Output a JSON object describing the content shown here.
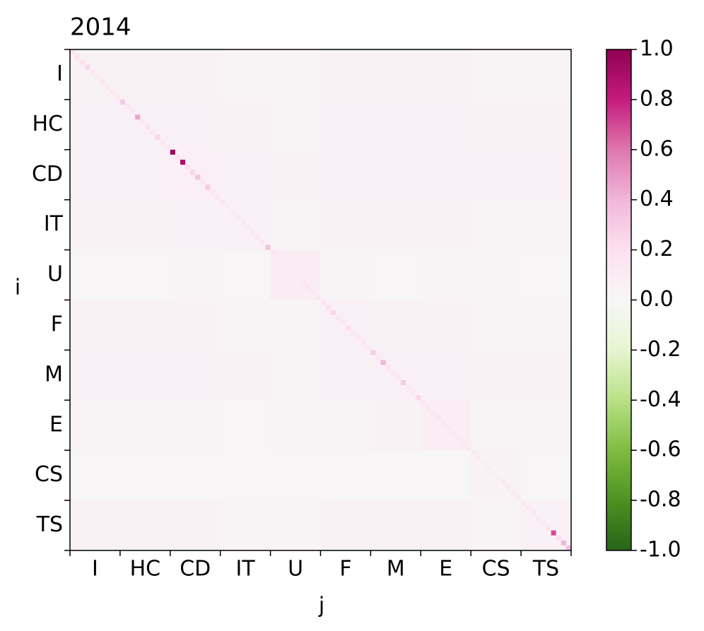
{
  "chart_data": {
    "type": "heatmap",
    "title": "2014",
    "xlabel": "j",
    "ylabel": "i",
    "categories": [
      "I",
      "HC",
      "CD",
      "IT",
      "U",
      "F",
      "M",
      "E",
      "CS",
      "TS"
    ],
    "z": [
      [
        0.04,
        0.04,
        0.04,
        0.03,
        0.03,
        0.04,
        0.04,
        0.04,
        0.03,
        0.03
      ],
      [
        0.05,
        0.06,
        0.05,
        0.04,
        0.03,
        0.05,
        0.05,
        0.05,
        0.04,
        0.04
      ],
      [
        0.06,
        0.06,
        0.07,
        0.05,
        0.04,
        0.06,
        0.06,
        0.06,
        0.05,
        0.05
      ],
      [
        0.04,
        0.04,
        0.05,
        0.05,
        0.03,
        0.04,
        0.04,
        0.04,
        0.03,
        0.03
      ],
      [
        0.02,
        0.02,
        0.03,
        0.02,
        0.1,
        0.03,
        0.02,
        0.03,
        0.03,
        0.02
      ],
      [
        0.04,
        0.04,
        0.04,
        0.03,
        0.03,
        0.06,
        0.04,
        0.04,
        0.03,
        0.03
      ],
      [
        0.05,
        0.05,
        0.05,
        0.04,
        0.03,
        0.05,
        0.06,
        0.05,
        0.04,
        0.04
      ],
      [
        0.03,
        0.03,
        0.03,
        0.02,
        0.03,
        0.03,
        0.04,
        0.09,
        0.03,
        0.03
      ],
      [
        0.02,
        0.02,
        0.02,
        0.02,
        0.02,
        0.02,
        0.02,
        0.02,
        0.04,
        0.02
      ],
      [
        0.04,
        0.04,
        0.04,
        0.03,
        0.03,
        0.04,
        0.04,
        0.04,
        0.03,
        0.05
      ]
    ],
    "diagonal": [
      0.18,
      0.2,
      0.2,
      0.25,
      0.15,
      0.15,
      0.15,
      0.15,
      0.15,
      0.15,
      0.3,
      0.15,
      0.15,
      0.45,
      0.15,
      0.2,
      0.15,
      0.25,
      0.15,
      0.15,
      0.95,
      0.15,
      0.9,
      0.2,
      0.25,
      0.35,
      0.15,
      0.3,
      0.15,
      0.15,
      0.15,
      0.1,
      0.12,
      0.12,
      0.12,
      0.12,
      0.15,
      0.15,
      0.15,
      0.35,
      0.15,
      0.12,
      0.12,
      0.12,
      0.12,
      0.12,
      0.15,
      0.15,
      0.15,
      0.15,
      0.15,
      0.2,
      0.25,
      0.15,
      0.15,
      0.2,
      0.15,
      0.15,
      0.15,
      0.15,
      0.3,
      0.15,
      0.4,
      0.15,
      0.15,
      0.15,
      0.3,
      0.15,
      0.15,
      0.25,
      0.15,
      0.15,
      0.15,
      0.15,
      0.15,
      0.12,
      0.12,
      0.12,
      0.12,
      0.12,
      0.12,
      0.1,
      0.1,
      0.1,
      0.1,
      0.1,
      0.12,
      0.12,
      0.12,
      0.12,
      0.12,
      0.12,
      0.12,
      0.12,
      0.12,
      0.15,
      0.7,
      0.2,
      0.4,
      0.35
    ],
    "zlim": [
      -1,
      1
    ],
    "zticks": [
      {
        "value": -1,
        "label": "-1.0"
      },
      -0.8,
      -0.6,
      -0.4,
      -0.2,
      {
        "value": 0,
        "label": "0.0"
      },
      0.2,
      0.4,
      0.6,
      0.8,
      {
        "value": 1,
        "label": "1.0"
      }
    ],
    "colorscale": [
      [
        -1,
        "#276419"
      ],
      [
        -0.8,
        "#4d9221"
      ],
      [
        -0.6,
        "#7fbc41"
      ],
      [
        -0.4,
        "#b8e186"
      ],
      [
        -0.2,
        "#e6f5d0"
      ],
      [
        0,
        "#f7f7f7"
      ],
      [
        0.2,
        "#fde0ef"
      ],
      [
        0.4,
        "#f1b6da"
      ],
      [
        0.6,
        "#de77ae"
      ],
      [
        0.8,
        "#c51b7d"
      ],
      [
        1,
        "#8e0152"
      ]
    ]
  }
}
